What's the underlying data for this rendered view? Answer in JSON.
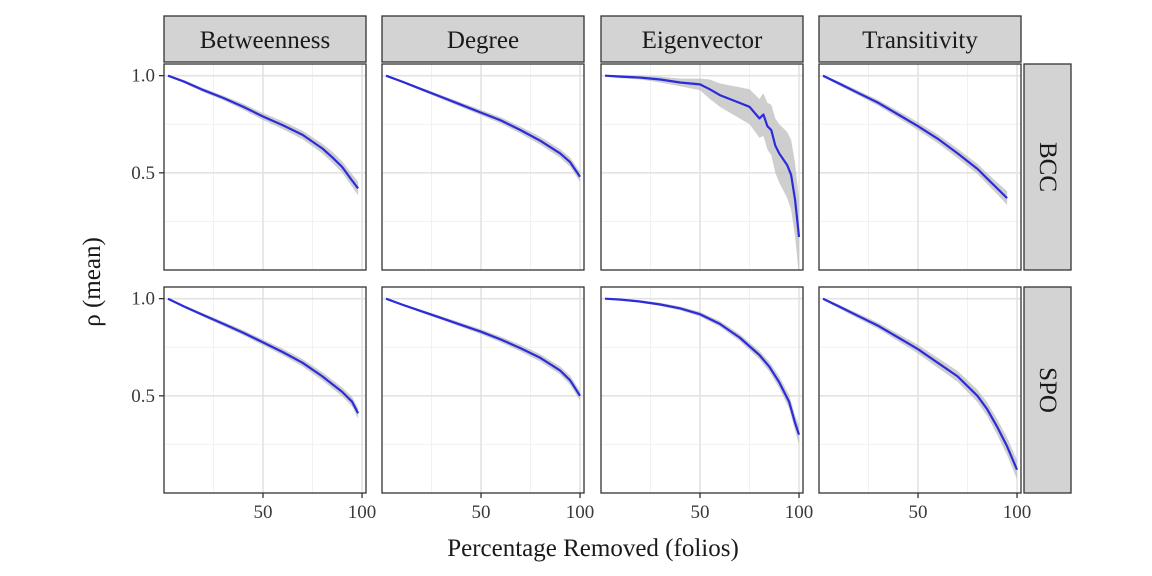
{
  "chart_data": {
    "type": "line",
    "xlabel": "Percentage Removed (folios)",
    "ylabel": "ρ (mean)",
    "xlim": [
      0,
      102
    ],
    "ylim": [
      0.0,
      1.06
    ],
    "x_ticks": [
      50,
      100
    ],
    "y_ticks": [
      0.5,
      1.0
    ],
    "x_tick_labels": [
      "50",
      "100"
    ],
    "y_tick_labels": [
      "0.5",
      "1.0"
    ],
    "column_facets": [
      "Betweenness",
      "Degree",
      "Eigenvector",
      "Transitivity"
    ],
    "row_facets": [
      "BCC",
      "SPO"
    ],
    "grid": true,
    "line_color": "#2b2bdb",
    "band_color": "#bdbdbd",
    "strip_fill": "#d3d3d3",
    "panels": [
      {
        "column": "Betweenness",
        "row": "BCC",
        "x": [
          2,
          10,
          20,
          30,
          40,
          50,
          60,
          70,
          80,
          85,
          90,
          95,
          98
        ],
        "y": [
          1.0,
          0.97,
          0.925,
          0.885,
          0.84,
          0.79,
          0.745,
          0.695,
          0.625,
          0.58,
          0.53,
          0.46,
          0.42
        ],
        "band": [
          0.005,
          0.008,
          0.01,
          0.012,
          0.015,
          0.018,
          0.02,
          0.022,
          0.025,
          0.028,
          0.03,
          0.032,
          0.035
        ]
      },
      {
        "column": "Degree",
        "row": "BCC",
        "x": [
          2,
          10,
          20,
          30,
          40,
          50,
          60,
          70,
          80,
          90,
          95,
          100
        ],
        "y": [
          1.0,
          0.97,
          0.93,
          0.89,
          0.85,
          0.81,
          0.77,
          0.72,
          0.665,
          0.6,
          0.555,
          0.48
        ],
        "band": [
          0.004,
          0.006,
          0.008,
          0.01,
          0.012,
          0.014,
          0.016,
          0.018,
          0.02,
          0.022,
          0.024,
          0.026
        ]
      },
      {
        "column": "Eigenvector",
        "row": "BCC",
        "x": [
          2,
          10,
          20,
          30,
          40,
          50,
          55,
          60,
          65,
          70,
          75,
          80,
          82,
          84,
          86,
          88,
          90,
          92,
          94,
          96,
          98,
          100
        ],
        "y": [
          1.0,
          0.995,
          0.99,
          0.98,
          0.965,
          0.955,
          0.93,
          0.9,
          0.88,
          0.86,
          0.84,
          0.78,
          0.8,
          0.74,
          0.72,
          0.64,
          0.6,
          0.57,
          0.54,
          0.49,
          0.36,
          0.17
        ],
        "band": [
          0.005,
          0.008,
          0.01,
          0.015,
          0.02,
          0.03,
          0.05,
          0.06,
          0.07,
          0.08,
          0.09,
          0.1,
          0.11,
          0.12,
          0.13,
          0.14,
          0.15,
          0.16,
          0.17,
          0.18,
          0.19,
          0.2
        ]
      },
      {
        "column": "Transitivity",
        "row": "BCC",
        "x": [
          2,
          10,
          20,
          30,
          40,
          50,
          60,
          70,
          80,
          85,
          90,
          95
        ],
        "y": [
          1.0,
          0.96,
          0.91,
          0.86,
          0.8,
          0.74,
          0.675,
          0.6,
          0.52,
          0.47,
          0.42,
          0.37
        ],
        "band": [
          0.005,
          0.01,
          0.012,
          0.015,
          0.018,
          0.02,
          0.022,
          0.024,
          0.026,
          0.028,
          0.03,
          0.035
        ]
      },
      {
        "column": "Betweenness",
        "row": "SPO",
        "x": [
          2,
          10,
          20,
          30,
          40,
          50,
          60,
          70,
          80,
          90,
          95,
          98
        ],
        "y": [
          1.0,
          0.96,
          0.915,
          0.87,
          0.825,
          0.775,
          0.725,
          0.67,
          0.6,
          0.52,
          0.47,
          0.41
        ],
        "band": [
          0.004,
          0.007,
          0.009,
          0.011,
          0.013,
          0.015,
          0.017,
          0.019,
          0.021,
          0.023,
          0.025,
          0.027
        ]
      },
      {
        "column": "Degree",
        "row": "SPO",
        "x": [
          2,
          10,
          20,
          30,
          40,
          50,
          60,
          70,
          80,
          90,
          95,
          100
        ],
        "y": [
          1.0,
          0.97,
          0.935,
          0.9,
          0.865,
          0.83,
          0.79,
          0.745,
          0.695,
          0.63,
          0.58,
          0.5
        ],
        "band": [
          0.003,
          0.005,
          0.007,
          0.009,
          0.011,
          0.013,
          0.015,
          0.017,
          0.019,
          0.021,
          0.023,
          0.025
        ]
      },
      {
        "column": "Eigenvector",
        "row": "SPO",
        "x": [
          2,
          10,
          20,
          30,
          40,
          50,
          60,
          70,
          80,
          85,
          90,
          95,
          98,
          100
        ],
        "y": [
          1.0,
          0.995,
          0.985,
          0.97,
          0.95,
          0.92,
          0.87,
          0.8,
          0.71,
          0.65,
          0.57,
          0.47,
          0.36,
          0.3
        ],
        "band": [
          0.003,
          0.004,
          0.006,
          0.008,
          0.01,
          0.012,
          0.015,
          0.018,
          0.022,
          0.025,
          0.03,
          0.035,
          0.04,
          0.05
        ]
      },
      {
        "column": "Transitivity",
        "row": "SPO",
        "x": [
          2,
          10,
          20,
          30,
          40,
          50,
          60,
          70,
          80,
          85,
          90,
          95,
          100
        ],
        "y": [
          1.0,
          0.96,
          0.91,
          0.86,
          0.8,
          0.74,
          0.67,
          0.6,
          0.5,
          0.43,
          0.34,
          0.24,
          0.12
        ],
        "band": [
          0.005,
          0.01,
          0.013,
          0.016,
          0.019,
          0.022,
          0.025,
          0.028,
          0.032,
          0.035,
          0.04,
          0.045,
          0.05
        ]
      }
    ]
  }
}
